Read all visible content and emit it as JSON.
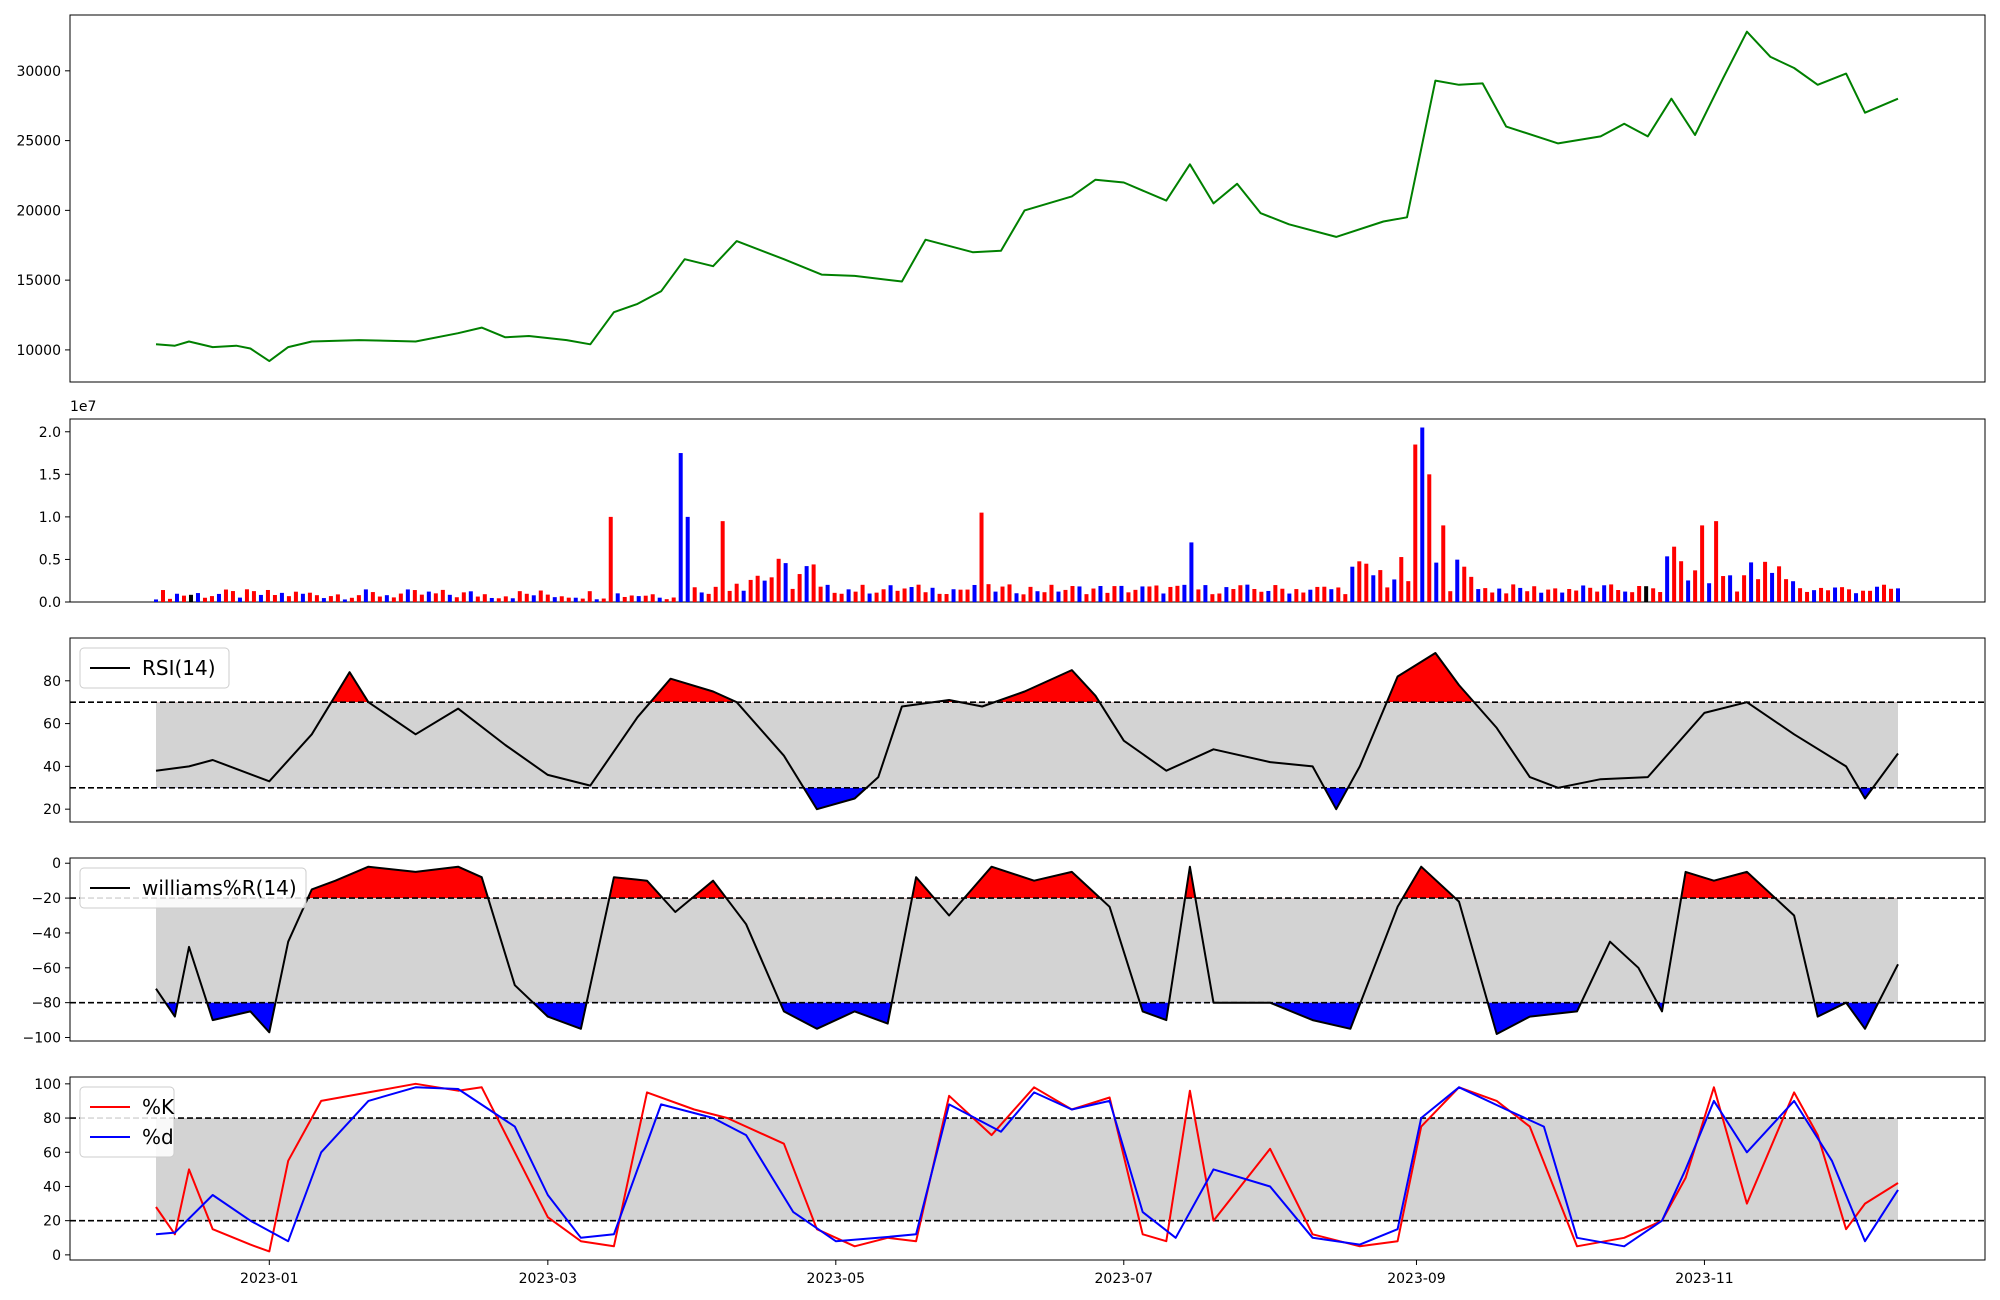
{
  "colors": {
    "price": "#008000",
    "up": "#ff0000",
    "down": "#0000ff",
    "flat": "#000000",
    "band": "#d3d3d3",
    "axis": "#000000"
  },
  "chart_data": [
    {
      "type": "line",
      "name": "price",
      "title": "",
      "xlabel": "",
      "ylabel": "",
      "ylim": [
        7700,
        34000
      ],
      "yticks": [
        10000,
        15000,
        20000,
        25000,
        30000
      ],
      "ytick_labels": [
        "10000",
        "15000",
        "20000",
        "25000",
        "30000"
      ],
      "x_start": "2022-12-08",
      "x_end": "2023-12-12",
      "grid": false,
      "series": [
        {
          "name": "",
          "x": [
            "2022-12-08",
            "2022-12-12",
            "2022-12-15",
            "2022-12-20",
            "2022-12-25",
            "2022-12-28",
            "2023-01-01",
            "2023-01-05",
            "2023-01-10",
            "2023-01-20",
            "2023-02-01",
            "2023-02-10",
            "2023-02-15",
            "2023-02-20",
            "2023-02-25",
            "2023-03-05",
            "2023-03-10",
            "2023-03-15",
            "2023-03-20",
            "2023-03-25",
            "2023-03-30",
            "2023-04-05",
            "2023-04-10",
            "2023-04-20",
            "2023-04-28",
            "2023-05-05",
            "2023-05-15",
            "2023-05-20",
            "2023-05-30",
            "2023-06-05",
            "2023-06-10",
            "2023-06-20",
            "2023-06-25",
            "2023-07-01",
            "2023-07-10",
            "2023-07-15",
            "2023-07-20",
            "2023-07-25",
            "2023-07-30",
            "2023-08-05",
            "2023-08-15",
            "2023-08-25",
            "2023-08-30",
            "2023-09-05",
            "2023-09-10",
            "2023-09-15",
            "2023-09-20",
            "2023-10-01",
            "2023-10-10",
            "2023-10-15",
            "2023-10-20",
            "2023-10-25",
            "2023-10-30",
            "2023-11-05",
            "2023-11-10",
            "2023-11-15",
            "2023-11-20",
            "2023-11-25",
            "2023-12-01",
            "2023-12-05",
            "2023-12-12"
          ],
          "values": [
            10400,
            10300,
            10600,
            10200,
            10300,
            10100,
            9200,
            10200,
            10600,
            10700,
            10600,
            11200,
            11600,
            10900,
            11000,
            10700,
            10400,
            12700,
            13300,
            14200,
            16500,
            16000,
            17800,
            16500,
            15400,
            15300,
            14900,
            17900,
            17000,
            17100,
            20000,
            21000,
            22200,
            22000,
            20700,
            23300,
            20500,
            21900,
            19800,
            19000,
            18100,
            19200,
            19500,
            29300,
            29000,
            29100,
            26000,
            24800,
            25300,
            26200,
            25300,
            28000,
            25400,
            29500,
            32800,
            31000,
            30200,
            29000,
            29800,
            27000,
            28000
          ]
        }
      ]
    },
    {
      "type": "bar",
      "name": "volume",
      "title": "",
      "xlabel": "",
      "ylabel": "",
      "offset_label": "1e7",
      "ylim": [
        0,
        2.15
      ],
      "yticks": [
        0.0,
        0.5,
        1.0,
        1.5,
        2.0
      ],
      "ytick_labels": [
        "0.0",
        "0.5",
        "1.0",
        "1.5",
        "2.0"
      ],
      "x_start": "2022-12-08",
      "x_end": "2023-12-12",
      "bar_count": 250,
      "peaks": [
        {
          "x": "2023-03-15",
          "value": 1.0,
          "color": "up"
        },
        {
          "x": "2023-03-29",
          "value": 1.75,
          "color": "down"
        },
        {
          "x": "2023-03-30",
          "value": 1.0,
          "color": "down"
        },
        {
          "x": "2023-04-07",
          "value": 0.95,
          "color": "up"
        },
        {
          "x": "2023-06-01",
          "value": 1.05,
          "color": "up"
        },
        {
          "x": "2023-07-15",
          "value": 0.7,
          "color": "down"
        },
        {
          "x": "2023-09-01",
          "value": 1.85,
          "color": "up"
        },
        {
          "x": "2023-09-02",
          "value": 2.05,
          "color": "down"
        },
        {
          "x": "2023-09-04",
          "value": 1.5,
          "color": "up"
        },
        {
          "x": "2023-09-06",
          "value": 0.9,
          "color": "up"
        },
        {
          "x": "2023-10-25",
          "value": 0.65,
          "color": "up"
        },
        {
          "x": "2023-11-01",
          "value": 0.9,
          "color": "up"
        },
        {
          "x": "2023-11-03",
          "value": 0.95,
          "color": "up"
        }
      ]
    },
    {
      "type": "line",
      "name": "rsi",
      "title": "",
      "legend": {
        "entries": [
          "RSI(14)"
        ],
        "placement": "upper-left"
      },
      "ylim": [
        14,
        100
      ],
      "yticks": [
        20,
        40,
        60,
        80
      ],
      "ytick_labels": [
        "20",
        "40",
        "60",
        "80"
      ],
      "thresholds": [
        30,
        70
      ],
      "x_start": "2022-12-08",
      "x_end": "2023-12-12",
      "series": [
        {
          "name": "RSI(14)",
          "x": [
            "2022-12-08",
            "2022-12-15",
            "2022-12-20",
            "2023-01-01",
            "2023-01-10",
            "2023-01-18",
            "2023-01-22",
            "2023-02-01",
            "2023-02-10",
            "2023-02-20",
            "2023-03-01",
            "2023-03-10",
            "2023-03-20",
            "2023-03-27",
            "2023-04-05",
            "2023-04-10",
            "2023-04-20",
            "2023-04-27",
            "2023-05-05",
            "2023-05-10",
            "2023-05-15",
            "2023-05-25",
            "2023-06-01",
            "2023-06-10",
            "2023-06-20",
            "2023-06-25",
            "2023-07-01",
            "2023-07-10",
            "2023-07-20",
            "2023-08-01",
            "2023-08-10",
            "2023-08-15",
            "2023-08-20",
            "2023-08-28",
            "2023-09-05",
            "2023-09-10",
            "2023-09-18",
            "2023-09-25",
            "2023-10-01",
            "2023-10-10",
            "2023-10-20",
            "2023-11-01",
            "2023-11-10",
            "2023-11-20",
            "2023-12-01",
            "2023-12-05",
            "2023-12-12"
          ],
          "values": [
            38,
            40,
            43,
            33,
            55,
            84,
            70,
            55,
            67,
            50,
            36,
            31,
            63,
            81,
            75,
            70,
            45,
            20,
            25,
            35,
            68,
            71,
            68,
            75,
            85,
            73,
            52,
            38,
            48,
            42,
            40,
            20,
            40,
            82,
            93,
            78,
            58,
            35,
            30,
            34,
            35,
            65,
            70,
            55,
            40,
            25,
            46
          ]
        }
      ]
    },
    {
      "type": "line",
      "name": "williams",
      "title": "",
      "legend": {
        "entries": [
          "williams%R(14)"
        ],
        "placement": "upper-left"
      },
      "ylim": [
        -102,
        3
      ],
      "yticks": [
        -100,
        -80,
        -60,
        -40,
        -20,
        0
      ],
      "ytick_labels": [
        "−100",
        "−80",
        "−60",
        "−40",
        "−20",
        "0"
      ],
      "thresholds": [
        -80,
        -20
      ],
      "x_start": "2022-12-08",
      "x_end": "2023-12-12",
      "series": [
        {
          "name": "williams%R(14)",
          "x": [
            "2022-12-08",
            "2022-12-12",
            "2022-12-15",
            "2022-12-20",
            "2022-12-28",
            "2023-01-01",
            "2023-01-05",
            "2023-01-10",
            "2023-01-15",
            "2023-01-22",
            "2023-02-01",
            "2023-02-10",
            "2023-02-15",
            "2023-02-22",
            "2023-03-01",
            "2023-03-08",
            "2023-03-15",
            "2023-03-22",
            "2023-03-28",
            "2023-04-05",
            "2023-04-12",
            "2023-04-20",
            "2023-04-27",
            "2023-05-05",
            "2023-05-12",
            "2023-05-18",
            "2023-05-25",
            "2023-06-03",
            "2023-06-12",
            "2023-06-20",
            "2023-06-28",
            "2023-07-05",
            "2023-07-10",
            "2023-07-15",
            "2023-07-20",
            "2023-08-01",
            "2023-08-10",
            "2023-08-18",
            "2023-08-28",
            "2023-09-02",
            "2023-09-10",
            "2023-09-18",
            "2023-09-25",
            "2023-10-05",
            "2023-10-12",
            "2023-10-18",
            "2023-10-23",
            "2023-10-28",
            "2023-11-03",
            "2023-11-10",
            "2023-11-20",
            "2023-11-25",
            "2023-12-01",
            "2023-12-05",
            "2023-12-12"
          ],
          "values": [
            -72,
            -88,
            -48,
            -90,
            -85,
            -97,
            -45,
            -15,
            -10,
            -2,
            -5,
            -2,
            -8,
            -70,
            -88,
            -95,
            -8,
            -10,
            -28,
            -10,
            -35,
            -85,
            -95,
            -85,
            -92,
            -8,
            -30,
            -2,
            -10,
            -5,
            -25,
            -85,
            -90,
            -2,
            -80,
            -80,
            -90,
            -95,
            -25,
            -2,
            -22,
            -98,
            -88,
            -85,
            -45,
            -60,
            -85,
            -5,
            -10,
            -5,
            -30,
            -88,
            -80,
            -95,
            -58
          ]
        }
      ]
    },
    {
      "type": "line",
      "name": "stochastic",
      "title": "",
      "legend": {
        "entries": [
          "%K",
          "%d"
        ],
        "placement": "upper-left"
      },
      "ylim": [
        -3,
        104
      ],
      "yticks": [
        0,
        20,
        40,
        60,
        80,
        100
      ],
      "ytick_labels": [
        "0",
        "20",
        "40",
        "60",
        "80",
        "100"
      ],
      "thresholds": [
        20,
        80
      ],
      "x_start": "2022-12-08",
      "x_end": "2023-12-12",
      "xtick_labels": [
        "2023-01",
        "2023-03",
        "2023-05",
        "2023-07",
        "2023-09",
        "2023-11"
      ],
      "series": [
        {
          "name": "%K",
          "x": [
            "2022-12-08",
            "2022-12-12",
            "2022-12-15",
            "2022-12-20",
            "2022-12-28",
            "2023-01-01",
            "2023-01-05",
            "2023-01-12",
            "2023-01-22",
            "2023-02-01",
            "2023-02-10",
            "2023-02-15",
            "2023-02-22",
            "2023-03-01",
            "2023-03-08",
            "2023-03-15",
            "2023-03-22",
            "2023-04-01",
            "2023-04-08",
            "2023-04-20",
            "2023-04-27",
            "2023-05-05",
            "2023-05-12",
            "2023-05-18",
            "2023-05-25",
            "2023-06-03",
            "2023-06-12",
            "2023-06-20",
            "2023-06-28",
            "2023-07-05",
            "2023-07-10",
            "2023-07-15",
            "2023-07-20",
            "2023-08-01",
            "2023-08-10",
            "2023-08-20",
            "2023-08-28",
            "2023-09-02",
            "2023-09-10",
            "2023-09-18",
            "2023-09-25",
            "2023-10-05",
            "2023-10-15",
            "2023-10-23",
            "2023-10-28",
            "2023-11-03",
            "2023-11-10",
            "2023-11-20",
            "2023-11-25",
            "2023-12-01",
            "2023-12-05",
            "2023-12-12"
          ],
          "values": [
            28,
            12,
            50,
            15,
            6,
            2,
            55,
            90,
            95,
            100,
            96,
            98,
            60,
            22,
            8,
            5,
            95,
            85,
            80,
            65,
            15,
            5,
            10,
            8,
            93,
            70,
            98,
            85,
            92,
            12,
            8,
            96,
            20,
            62,
            12,
            5,
            8,
            75,
            98,
            90,
            75,
            5,
            10,
            20,
            45,
            98,
            30,
            95,
            70,
            15,
            30,
            42
          ]
        },
        {
          "name": "%d",
          "x": [
            "2022-12-08",
            "2022-12-12",
            "2022-12-20",
            "2022-12-28",
            "2023-01-05",
            "2023-01-12",
            "2023-01-22",
            "2023-02-01",
            "2023-02-10",
            "2023-02-22",
            "2023-03-01",
            "2023-03-08",
            "2023-03-15",
            "2023-03-25",
            "2023-04-05",
            "2023-04-12",
            "2023-04-22",
            "2023-05-01",
            "2023-05-10",
            "2023-05-18",
            "2023-05-25",
            "2023-06-05",
            "2023-06-12",
            "2023-06-20",
            "2023-06-28",
            "2023-07-05",
            "2023-07-12",
            "2023-07-20",
            "2023-08-01",
            "2023-08-10",
            "2023-08-20",
            "2023-08-28",
            "2023-09-02",
            "2023-09-10",
            "2023-09-20",
            "2023-09-28",
            "2023-10-05",
            "2023-10-15",
            "2023-10-23",
            "2023-10-28",
            "2023-11-03",
            "2023-11-10",
            "2023-11-20",
            "2023-11-28",
            "2023-12-05",
            "2023-12-12"
          ],
          "values": [
            12,
            13,
            35,
            20,
            8,
            60,
            90,
            98,
            97,
            75,
            35,
            10,
            12,
            88,
            80,
            70,
            25,
            8,
            10,
            12,
            88,
            72,
            95,
            85,
            90,
            25,
            10,
            50,
            40,
            10,
            6,
            15,
            80,
            98,
            85,
            75,
            10,
            5,
            20,
            50,
            90,
            60,
            90,
            55,
            8,
            38
          ]
        }
      ]
    }
  ]
}
